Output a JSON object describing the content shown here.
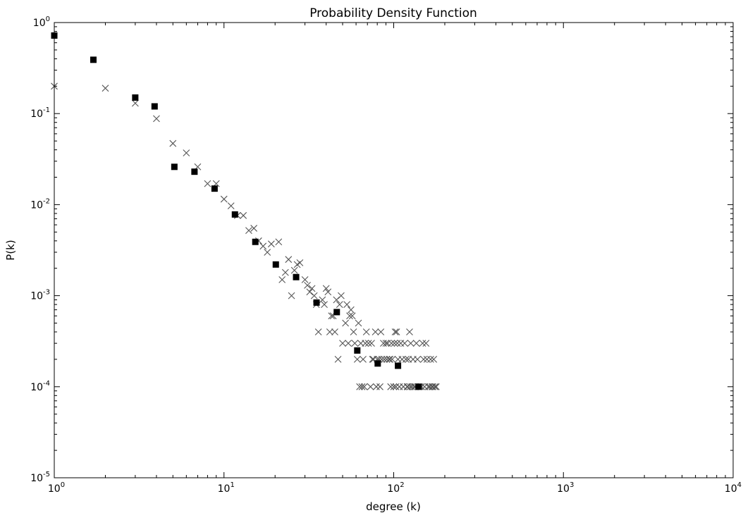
{
  "chart_data": {
    "type": "scatter",
    "title": "Probability Density Function",
    "xlabel": "degree (k)",
    "ylabel": "P(k)",
    "x_scale": "log",
    "y_scale": "log",
    "xlim": [
      1,
      10000
    ],
    "ylim": [
      1e-05,
      1
    ],
    "x_ticks": [
      {
        "base": "10",
        "exp": "0",
        "value": 1
      },
      {
        "base": "10",
        "exp": "1",
        "value": 10
      },
      {
        "base": "10",
        "exp": "2",
        "value": 100
      },
      {
        "base": "10",
        "exp": "3",
        "value": 1000
      },
      {
        "base": "10",
        "exp": "4",
        "value": 10000
      }
    ],
    "y_ticks": [
      {
        "base": "10",
        "exp": "0",
        "value": 1
      },
      {
        "base": "10",
        "exp": "-1",
        "value": 0.1
      },
      {
        "base": "10",
        "exp": "-2",
        "value": 0.01
      },
      {
        "base": "10",
        "exp": "-3",
        "value": 0.001
      },
      {
        "base": "10",
        "exp": "-4",
        "value": 0.0001
      },
      {
        "base": "10",
        "exp": "-5",
        "value": 1e-05
      }
    ],
    "grid": false,
    "legend": "none",
    "series": [
      {
        "marker": "x",
        "color": "#555555",
        "points": [
          [
            1,
            0.2
          ],
          [
            2,
            0.19
          ],
          [
            3,
            0.13
          ],
          [
            4,
            0.088
          ],
          [
            5,
            0.047
          ],
          [
            6,
            0.037
          ],
          [
            7,
            0.026
          ],
          [
            8,
            0.017
          ],
          [
            9,
            0.017
          ],
          [
            10,
            0.0115
          ],
          [
            11,
            0.0097
          ],
          [
            12,
            0.0076
          ],
          [
            13,
            0.0076
          ],
          [
            14,
            0.0052
          ],
          [
            15,
            0.0055
          ],
          [
            16,
            0.004
          ],
          [
            17,
            0.0035
          ],
          [
            18,
            0.003
          ],
          [
            19,
            0.0037
          ],
          [
            21,
            0.0039
          ],
          [
            22,
            0.0015
          ],
          [
            23,
            0.0018
          ],
          [
            24,
            0.0025
          ],
          [
            25,
            0.001
          ],
          [
            26,
            0.0019
          ],
          [
            27,
            0.0022
          ],
          [
            28,
            0.0023
          ],
          [
            30,
            0.0015
          ],
          [
            31,
            0.0013
          ],
          [
            32,
            0.0011
          ],
          [
            33,
            0.0012
          ],
          [
            34,
            0.001
          ],
          [
            35,
            0.0008
          ],
          [
            36,
            0.0004
          ],
          [
            38,
            0.0009
          ],
          [
            39,
            0.0008
          ],
          [
            40,
            0.0012
          ],
          [
            41,
            0.0011
          ],
          [
            42,
            0.0004
          ],
          [
            43,
            0.0006
          ],
          [
            44,
            0.0006
          ],
          [
            45,
            0.0004
          ],
          [
            46,
            0.0009
          ],
          [
            47,
            0.0002
          ],
          [
            48,
            0.0008
          ],
          [
            49,
            0.001
          ],
          [
            50,
            0.0003
          ],
          [
            52,
            0.0005
          ],
          [
            53,
            0.0008
          ],
          [
            54,
            0.0003
          ],
          [
            55,
            0.0006
          ],
          [
            56,
            0.0007
          ],
          [
            57,
            0.0006
          ],
          [
            58,
            0.0004
          ],
          [
            59,
            0.0003
          ],
          [
            61,
            0.0002
          ],
          [
            62,
            0.0005
          ],
          [
            63,
            0.0001
          ],
          [
            64,
            0.0003
          ],
          [
            65,
            0.0001
          ],
          [
            66,
            0.0002
          ],
          [
            67,
            0.0001
          ],
          [
            68,
            0.0003
          ],
          [
            69,
            0.0004
          ],
          [
            71,
            0.0003
          ],
          [
            73,
            0.0001
          ],
          [
            74,
            0.0003
          ],
          [
            75,
            0.0002
          ],
          [
            76,
            0.0002
          ],
          [
            78,
            0.0004
          ],
          [
            79,
            0.0001
          ],
          [
            80,
            0.0002
          ],
          [
            82,
            0.0002
          ],
          [
            83,
            0.0001
          ],
          [
            84,
            0.0004
          ],
          [
            85,
            0.0002
          ],
          [
            87,
            0.0003
          ],
          [
            88,
            0.0002
          ],
          [
            90,
            0.0003
          ],
          [
            91,
            0.0002
          ],
          [
            92,
            0.0003
          ],
          [
            94,
            0.0002
          ],
          [
            95,
            0.0002
          ],
          [
            96,
            0.0001
          ],
          [
            97,
            0.0003
          ],
          [
            98,
            0.0002
          ],
          [
            100,
            0.0001
          ],
          [
            101,
            0.0003
          ],
          [
            102,
            0.0004
          ],
          [
            103,
            0.0001
          ],
          [
            104,
            0.0004
          ],
          [
            105,
            0.0003
          ],
          [
            106,
            0.0002
          ],
          [
            108,
            0.0001
          ],
          [
            110,
            0.0003
          ],
          [
            112,
            0.0002
          ],
          [
            114,
            0.0001
          ],
          [
            116,
            0.0003
          ],
          [
            118,
            0.0002
          ],
          [
            120,
            0.0001
          ],
          [
            121,
            0.0001
          ],
          [
            122,
            0.0002
          ],
          [
            124,
            0.0004
          ],
          [
            125,
            0.0001
          ],
          [
            126,
            0.0003
          ],
          [
            128,
            0.0001
          ],
          [
            130,
            0.0002
          ],
          [
            132,
            0.0001
          ],
          [
            134,
            0.0001
          ],
          [
            136,
            0.0003
          ],
          [
            138,
            0.0002
          ],
          [
            140,
            0.0001
          ],
          [
            143,
            0.0001
          ],
          [
            146,
            0.0001
          ],
          [
            148,
            0.0003
          ],
          [
            150,
            0.0002
          ],
          [
            152,
            0.0001
          ],
          [
            155,
            0.0003
          ],
          [
            157,
            0.0002
          ],
          [
            160,
            0.0001
          ],
          [
            163,
            0.0001
          ],
          [
            165,
            0.0002
          ],
          [
            168,
            0.0001
          ],
          [
            170,
            0.0001
          ],
          [
            172,
            0.0002
          ],
          [
            175,
            0.0001
          ],
          [
            178,
            0.0001
          ]
        ]
      },
      {
        "marker": "square",
        "color": "#000000",
        "points": [
          [
            1,
            0.72
          ],
          [
            1.7,
            0.39
          ],
          [
            3,
            0.15
          ],
          [
            3.9,
            0.12
          ],
          [
            5.1,
            0.026
          ],
          [
            6.7,
            0.023
          ],
          [
            8.8,
            0.015
          ],
          [
            11.6,
            0.0078
          ],
          [
            15.3,
            0.0039
          ],
          [
            20.2,
            0.0022
          ],
          [
            26.6,
            0.0016
          ],
          [
            35.1,
            0.00084
          ],
          [
            46.2,
            0.00066
          ],
          [
            61,
            0.00025
          ],
          [
            80.5,
            0.00018
          ],
          [
            106,
            0.00017
          ],
          [
            140,
            0.0001
          ]
        ]
      }
    ]
  }
}
